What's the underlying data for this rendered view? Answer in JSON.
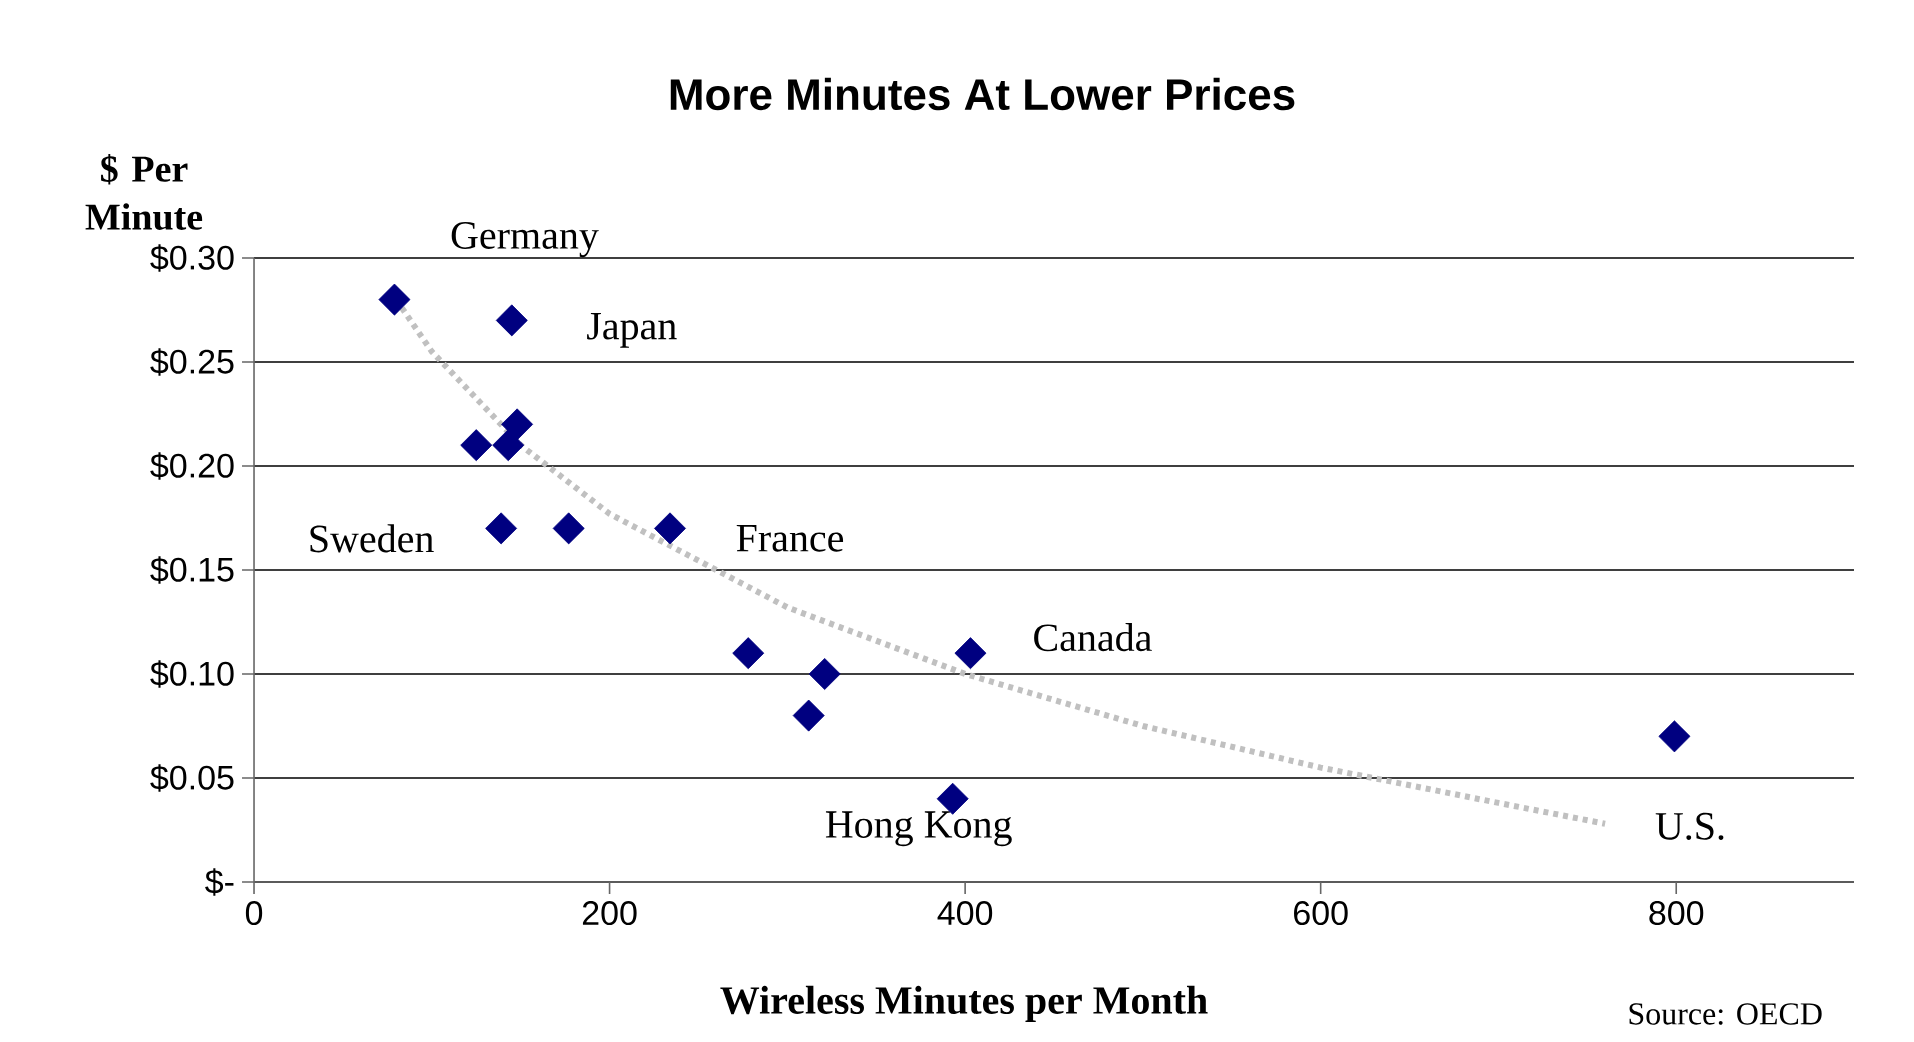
{
  "chart_data": {
    "type": "scatter",
    "title": "More Minutes At Lower Prices",
    "xlabel": "Wireless Minutes per Month",
    "ylabel": "$ Per Minute",
    "series": [
      {
        "color": "#000080",
        "marker": "diamond",
        "x": [
          79,
          145,
          125,
          148,
          143,
          139,
          177,
          234,
          278,
          321,
          312,
          393,
          403,
          799
        ],
        "values": [
          0.28,
          0.27,
          0.21,
          0.22,
          0.21,
          0.17,
          0.17,
          0.17,
          0.11,
          0.1,
          0.08,
          0.04,
          0.11,
          0.07
        ]
      },
      {
        "type": "line",
        "color": "#c0c0c0",
        "line_style": "dotted",
        "marker": "none",
        "x": [
          80,
          100,
          150,
          200,
          300,
          400,
          500,
          600,
          700,
          760
        ],
        "values": [
          0.28,
          0.255,
          0.21,
          0.177,
          0.132,
          0.1,
          0.075,
          0.055,
          0.038,
          0.028
        ]
      }
    ],
    "xlim": [
      0,
      900
    ],
    "ylim": [
      0,
      0.3
    ],
    "xticks": [
      0,
      200,
      400,
      600,
      800
    ],
    "yticks": [
      {
        "value": 0,
        "label": "$-"
      },
      {
        "value": 0.05,
        "label": "$0.05"
      },
      {
        "value": 0.1,
        "label": "$0.10"
      },
      {
        "value": 0.15,
        "label": "$0.15"
      },
      {
        "value": 0.2,
        "label": "$0.20"
      },
      {
        "value": 0.25,
        "label": "$0.25"
      },
      {
        "value": 0.3,
        "label": "$0.30"
      }
    ],
    "grid": "y",
    "annotations": [
      {
        "text": "Germany",
        "x": 79,
        "y": 0.28
      },
      {
        "text": "Japan",
        "x": 145,
        "y": 0.27
      },
      {
        "text": "Sweden",
        "x": 139,
        "y": 0.17
      },
      {
        "text": "France",
        "x": 234,
        "y": 0.17
      },
      {
        "text": "Canada",
        "x": 403,
        "y": 0.11
      },
      {
        "text": "Hong Kong",
        "x": 393,
        "y": 0.04
      },
      {
        "text": "U.S.",
        "x": 799,
        "y": 0.07
      },
      "Source: OECD"
    ]
  }
}
